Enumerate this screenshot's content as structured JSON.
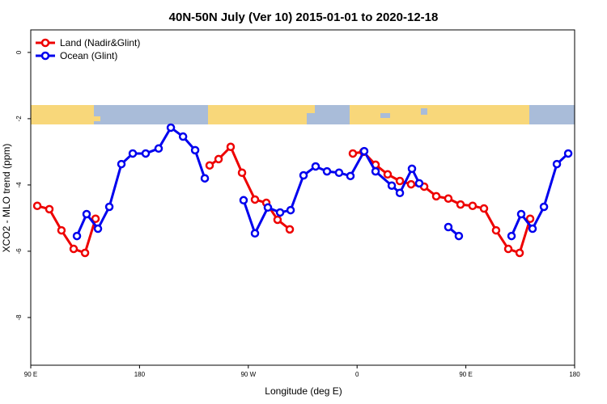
{
  "chart_data": {
    "type": "line",
    "title": "40N-50N July (Ver 10)   2015-01-01 to 2020-12-18",
    "xlabel": "Longitude (deg E)",
    "ylabel": "XCO2 - MLO trend (ppm)",
    "xlim": [
      90,
      540
    ],
    "xticks": [
      {
        "value": 90,
        "label": "90 E"
      },
      180,
      {
        "value": 270,
        "label": "90 W"
      },
      {
        "value": 360,
        "label": "0"
      },
      {
        "value": 450,
        "label": "90 E"
      },
      {
        "value": 540,
        "label": "180"
      }
    ],
    "ylim": [
      -9.44,
      0.68
    ],
    "yticks": [
      0,
      -2,
      -4,
      -6,
      -8
    ],
    "legend": "top-left",
    "series": [
      {
        "name": "Land (Nadir&Glint)",
        "color": "#ee0000",
        "x": [
          95.4,
          105.4,
          115.4,
          125.5,
          134.9,
          143.6,
          null,
          238,
          245.4,
          255.4,
          264.8,
          275.5,
          284.9,
          294.2,
          304.3,
          null,
          356.5,
          365.2,
          375.3,
          385.3,
          395.4,
          404.7,
          415.5,
          425.5,
          435.5,
          445.6,
          455.6,
          465,
          475,
          485.1,
          494.5,
          503.2
        ],
        "values": [
          -4.63,
          -4.73,
          -5.37,
          -5.93,
          -6.05,
          -5.02,
          null,
          -3.41,
          -3.22,
          -2.85,
          -3.63,
          -4.44,
          -4.54,
          -5.05,
          -5.34,
          null,
          -3.05,
          -3.0,
          -3.39,
          -3.68,
          -3.88,
          -3.98,
          -4.05,
          -4.34,
          -4.41,
          -4.59,
          -4.63,
          -4.71,
          -5.37,
          -5.93,
          -6.05,
          -5.02
        ]
      },
      {
        "name": "Ocean (Glint)",
        "color": "#0000ee",
        "x": [
          128.2,
          136.2,
          145.6,
          155,
          165,
          174.4,
          185.1,
          195.8,
          205.9,
          216,
          226,
          234,
          null,
          266.1,
          275.5,
          286.2,
          296.3,
          305,
          315.7,
          325.7,
          335.1,
          345.1,
          354.5,
          365.9,
          375.3,
          388.7,
          395.4,
          405.4,
          411.4,
          null,
          435.5,
          444.2,
          null,
          487.8,
          495.8,
          505.2,
          514.6,
          525.3,
          534.7
        ],
        "values": [
          -5.54,
          -4.88,
          -5.32,
          -4.66,
          -3.37,
          -3.05,
          -3.05,
          -2.9,
          -2.27,
          -2.54,
          -2.95,
          -3.8,
          null,
          -4.46,
          -5.46,
          -4.68,
          -4.83,
          -4.76,
          -3.71,
          -3.44,
          -3.59,
          -3.63,
          -3.73,
          -2.98,
          -3.59,
          -4.02,
          -4.24,
          -3.51,
          -3.95,
          null,
          -5.27,
          -5.54,
          null,
          -5.54,
          -4.88,
          -5.32,
          -4.66,
          -3.37,
          -3.05
        ]
      }
    ]
  }
}
